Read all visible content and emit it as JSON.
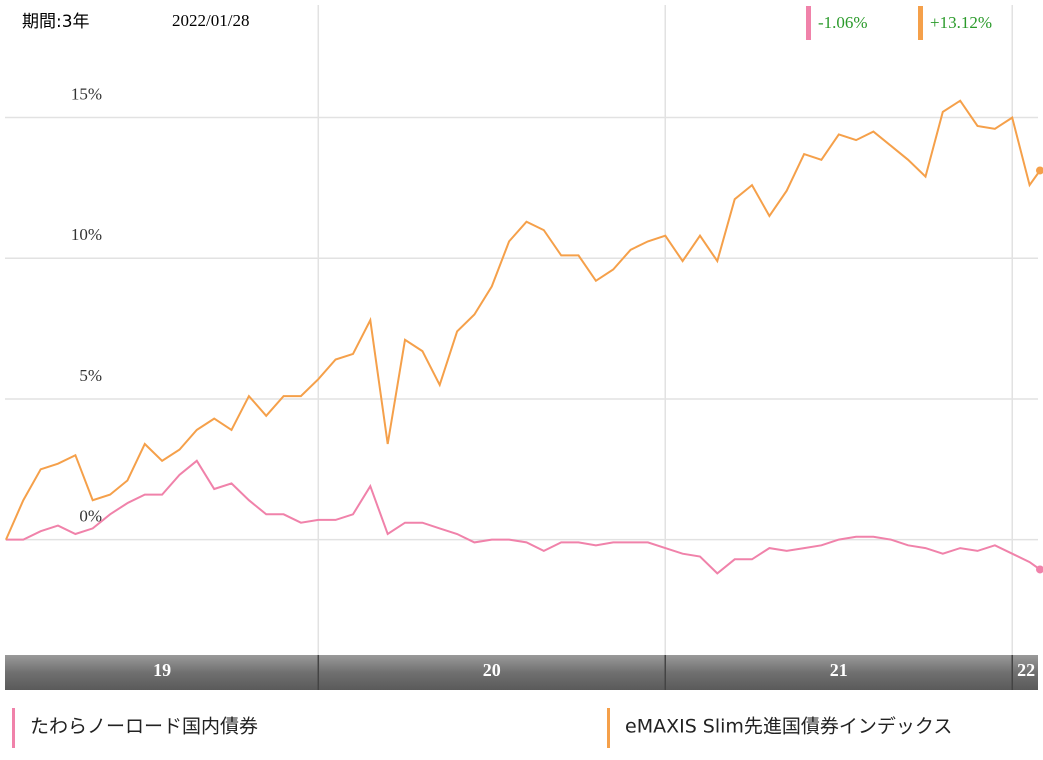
{
  "header": {
    "period": "期間:3年",
    "date": "2022/01/28"
  },
  "chart_data": {
    "type": "line",
    "x": [
      2019.1,
      2019.15,
      2019.2,
      2019.25,
      2019.3,
      2019.35,
      2019.4,
      2019.45,
      2019.5,
      2019.55,
      2019.6,
      2019.65,
      2019.7,
      2019.75,
      2019.8,
      2019.85,
      2019.9,
      2019.95,
      2020,
      2020.05,
      2020.1,
      2020.15,
      2020.2,
      2020.25,
      2020.3,
      2020.35,
      2020.4,
      2020.45,
      2020.5,
      2020.55,
      2020.6,
      2020.65,
      2020.7,
      2020.75,
      2020.8,
      2020.85,
      2020.9,
      2020.95,
      2021,
      2021.05,
      2021.1,
      2021.15,
      2021.2,
      2021.25,
      2021.3,
      2021.35,
      2021.4,
      2021.45,
      2021.5,
      2021.55,
      2021.6,
      2021.65,
      2021.7,
      2021.75,
      2021.8,
      2021.85,
      2021.9,
      2021.95,
      2022,
      2022.05,
      2022.08
    ],
    "series": [
      {
        "name": "たわらノーロード国内債券",
        "color": "#f082aa",
        "change_label": "-1.06%",
        "values": [
          0,
          0,
          0.3,
          0.5,
          0.2,
          0.4,
          0.9,
          1.3,
          1.6,
          1.6,
          2.3,
          2.8,
          1.8,
          2.0,
          1.4,
          0.9,
          0.9,
          0.6,
          0.7,
          0.7,
          0.9,
          1.9,
          0.2,
          0.6,
          0.6,
          0.4,
          0.2,
          -0.1,
          0,
          0,
          -0.1,
          -0.4,
          -0.1,
          -0.1,
          -0.2,
          -0.1,
          -0.1,
          -0.1,
          -0.3,
          -0.5,
          -0.6,
          -1.2,
          -0.7,
          -0.7,
          -0.3,
          -0.4,
          -0.3,
          -0.2,
          0,
          0.1,
          0.1,
          0,
          -0.2,
          -0.3,
          -0.5,
          -0.3,
          -0.4,
          -0.2,
          -0.5,
          -0.8,
          -1.06
        ]
      },
      {
        "name": "eMAXIS Slim先進国債券インデックス",
        "color": "#f5a04a",
        "change_label": "+13.12%",
        "values": [
          0,
          1.4,
          2.5,
          2.7,
          3.0,
          1.4,
          1.6,
          2.1,
          3.4,
          2.8,
          3.2,
          3.9,
          4.3,
          3.9,
          5.1,
          4.4,
          5.1,
          5.1,
          5.7,
          6.4,
          6.6,
          7.8,
          3.4,
          7.1,
          6.7,
          5.5,
          7.4,
          8.0,
          9.0,
          10.6,
          11.3,
          11.0,
          10.1,
          10.1,
          9.2,
          9.6,
          10.3,
          10.6,
          10.8,
          9.9,
          10.8,
          9.9,
          12.1,
          12.6,
          11.5,
          12.4,
          13.7,
          13.5,
          14.4,
          14.2,
          14.5,
          14.0,
          13.5,
          12.9,
          15.2,
          15.6,
          14.7,
          14.6,
          15.0,
          12.6,
          13.12
        ]
      }
    ],
    "xlim": [
      2019.1,
      2022.08
    ],
    "xticks": [
      {
        "value": 2019,
        "label": "19"
      },
      {
        "value": 2020,
        "label": "20"
      },
      {
        "value": 2021,
        "label": "21"
      },
      {
        "value": 2022,
        "label": "22"
      }
    ],
    "ylim": [
      -4.1,
      19
    ],
    "yticks": [
      {
        "value": 0,
        "label": "0%"
      },
      {
        "value": 5,
        "label": "5%"
      },
      {
        "value": 10,
        "label": "10%"
      },
      {
        "value": 15,
        "label": "15%"
      }
    ],
    "grid": true,
    "change_color": "#2a9a2a"
  }
}
